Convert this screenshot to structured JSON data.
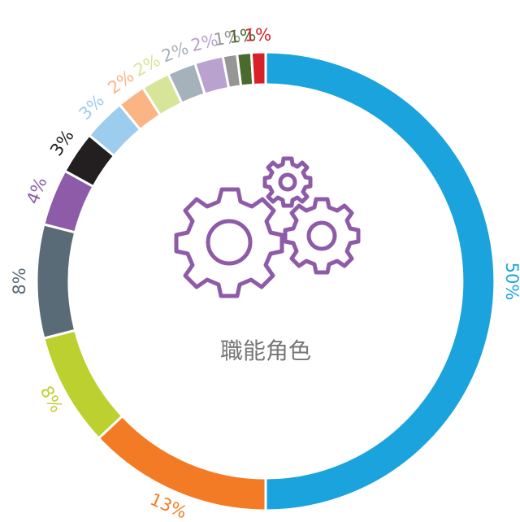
{
  "chart_data": {
    "type": "donut",
    "title": "職能角色",
    "categories": [
      null,
      null,
      null,
      null,
      null,
      null,
      null,
      null,
      null,
      null,
      null,
      null,
      null,
      null
    ],
    "values": [
      50,
      13,
      8,
      8,
      4,
      3,
      3,
      2,
      2,
      2,
      2,
      1,
      1,
      1
    ],
    "value_labels": [
      "50%",
      "13%",
      "8%",
      "8%",
      "4%",
      "3%",
      "3%",
      "2%",
      "2%",
      "2%",
      "2%",
      "1%",
      "1%",
      "1%"
    ],
    "colors": [
      "#1ba3dd",
      "#f47b25",
      "#bcd030",
      "#5a6b78",
      "#8e5ba8",
      "#231f20",
      "#9ccdef",
      "#fbb584",
      "#d6e59a",
      "#a5b1bb",
      "#b9a1d0",
      "#969696",
      "#4a6a2e",
      "#d7202a"
    ]
  }
}
